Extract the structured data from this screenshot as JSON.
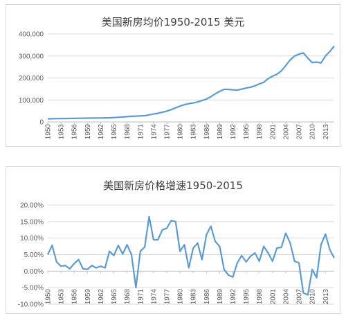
{
  "chart_data": [
    {
      "type": "line",
      "title": "美国新房均价1950-2015 美元",
      "xlabel": "",
      "ylabel": "",
      "ylim": [
        0,
        400000
      ],
      "y_ticks": [
        "400,000",
        "300,000",
        "200,000",
        "100,000",
        "0"
      ],
      "y_tick_values": [
        400000,
        300000,
        200000,
        100000,
        0
      ],
      "x_tick_labels": [
        "1950",
        "1953",
        "1956",
        "1959",
        "1962",
        "1965",
        "1968",
        "1971",
        "1974",
        "1977",
        "1980",
        "1983",
        "1986",
        "1989",
        "1992",
        "1995",
        "1998",
        "2001",
        "2004",
        "2007",
        "2010",
        "2013"
      ],
      "grid": true,
      "color": "#5b9bd5",
      "x": [
        1950,
        1951,
        1952,
        1953,
        1954,
        1955,
        1956,
        1957,
        1958,
        1959,
        1960,
        1961,
        1962,
        1963,
        1964,
        1965,
        1966,
        1967,
        1968,
        1969,
        1970,
        1971,
        1972,
        1973,
        1974,
        1975,
        1976,
        1977,
        1978,
        1979,
        1980,
        1981,
        1982,
        1983,
        1984,
        1985,
        1986,
        1987,
        1988,
        1989,
        1990,
        1991,
        1992,
        1993,
        1994,
        1995,
        1996,
        1997,
        1998,
        1999,
        2000,
        2001,
        2002,
        2003,
        2004,
        2005,
        2006,
        2007,
        2008,
        2009,
        2010,
        2011,
        2012,
        2013,
        2014,
        2015
      ],
      "values": [
        14000,
        14600,
        15000,
        15300,
        15500,
        15700,
        16200,
        16800,
        17000,
        17200,
        17500,
        17800,
        18000,
        18500,
        19000,
        20000,
        21000,
        22500,
        24000,
        25500,
        26500,
        27500,
        28500,
        32000,
        36000,
        39500,
        44000,
        49000,
        56000,
        64000,
        72000,
        78000,
        83000,
        86000,
        91000,
        97000,
        104000,
        115000,
        128000,
        139000,
        148000,
        148000,
        146000,
        145000,
        149000,
        154000,
        158000,
        164000,
        173000,
        180000,
        197000,
        208000,
        217000,
        232000,
        256000,
        282000,
        300000,
        308000,
        314000,
        290000,
        270000,
        272000,
        268000,
        300000,
        320000,
        345000
      ]
    },
    {
      "type": "line",
      "title": "美国新房价格增速1950-2015",
      "xlabel": "",
      "ylabel": "",
      "ylim": [
        -0.1,
        0.2
      ],
      "y_ticks": [
        "20.00%",
        "15.00%",
        "10.00%",
        "5.00%",
        "0.00%",
        "-5.00%",
        "-10.00%"
      ],
      "y_tick_values": [
        0.2,
        0.15,
        0.1,
        0.05,
        0.0,
        -0.05,
        -0.1
      ],
      "x_tick_labels": [
        "1950",
        "1953",
        "1956",
        "1959",
        "1962",
        "1965",
        "1968",
        "1971",
        "1974",
        "1977",
        "1980",
        "1983",
        "1986",
        "1989",
        "1992",
        "1995",
        "1998",
        "2001",
        "2004",
        "2007",
        "2010",
        "2013"
      ],
      "grid": true,
      "color": "#5b9bd5",
      "x": [
        1950,
        1951,
        1952,
        1953,
        1954,
        1955,
        1956,
        1957,
        1958,
        1959,
        1960,
        1961,
        1962,
        1963,
        1964,
        1965,
        1966,
        1967,
        1968,
        1969,
        1970,
        1971,
        1972,
        1973,
        1974,
        1975,
        1976,
        1977,
        1978,
        1979,
        1980,
        1981,
        1982,
        1983,
        1984,
        1985,
        1986,
        1987,
        1988,
        1989,
        1990,
        1991,
        1992,
        1993,
        1994,
        1995,
        1996,
        1997,
        1998,
        1999,
        2000,
        2001,
        2002,
        2003,
        2004,
        2005,
        2006,
        2007,
        2008,
        2009,
        2010,
        2011,
        2012,
        2013,
        2014,
        2015
      ],
      "values": [
        0.05,
        0.078,
        0.028,
        0.015,
        0.017,
        0.007,
        0.023,
        0.035,
        0.007,
        0.005,
        0.017,
        0.01,
        0.015,
        0.01,
        0.06,
        0.047,
        0.078,
        0.052,
        0.08,
        0.05,
        -0.05,
        0.06,
        0.073,
        0.165,
        0.095,
        0.095,
        0.125,
        0.13,
        0.153,
        0.15,
        0.06,
        0.08,
        0.01,
        0.07,
        0.085,
        0.035,
        0.11,
        0.136,
        0.09,
        0.075,
        0.005,
        -0.012,
        -0.018,
        0.025,
        0.047,
        0.028,
        0.045,
        0.055,
        0.03,
        0.075,
        0.055,
        0.03,
        0.07,
        0.072,
        0.115,
        0.085,
        0.03,
        0.025,
        -0.066,
        -0.072,
        0.005,
        -0.02,
        0.08,
        0.112,
        0.065,
        0.04
      ]
    }
  ]
}
